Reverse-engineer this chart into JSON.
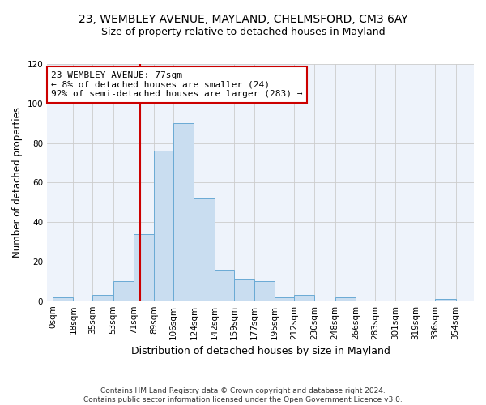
{
  "title_line1": "23, WEMBLEY AVENUE, MAYLAND, CHELMSFORD, CM3 6AY",
  "title_line2": "Size of property relative to detached houses in Mayland",
  "xlabel": "Distribution of detached houses by size in Mayland",
  "ylabel": "Number of detached properties",
  "footnote": "Contains HM Land Registry data © Crown copyright and database right 2024.\nContains public sector information licensed under the Open Government Licence v3.0.",
  "bin_labels": [
    "0sqm",
    "18sqm",
    "35sqm",
    "53sqm",
    "71sqm",
    "89sqm",
    "106sqm",
    "124sqm",
    "142sqm",
    "159sqm",
    "177sqm",
    "195sqm",
    "212sqm",
    "230sqm",
    "248sqm",
    "266sqm",
    "283sqm",
    "301sqm",
    "319sqm",
    "336sqm",
    "354sqm"
  ],
  "bar_values": [
    2,
    0,
    3,
    10,
    34,
    76,
    90,
    52,
    16,
    11,
    10,
    2,
    3,
    0,
    2,
    0,
    0,
    0,
    0,
    1
  ],
  "bar_color": "#c9ddf0",
  "bar_edge_color": "#6aaad4",
  "vline_color": "#cc0000",
  "annotation_text": "23 WEMBLEY AVENUE: 77sqm\n← 8% of detached houses are smaller (24)\n92% of semi-detached houses are larger (283) →",
  "annotation_box_color": "#ffffff",
  "annotation_box_edge": "#cc0000",
  "ylim": [
    0,
    120
  ],
  "yticks": [
    0,
    20,
    40,
    60,
    80,
    100,
    120
  ],
  "grid_color": "#cccccc",
  "bg_color": "#eef3fb",
  "title_fontsize": 10,
  "subtitle_fontsize": 9,
  "axis_label_fontsize": 8.5,
  "tick_fontsize": 7.5,
  "annotation_fontsize": 8,
  "footnote_fontsize": 6.5
}
